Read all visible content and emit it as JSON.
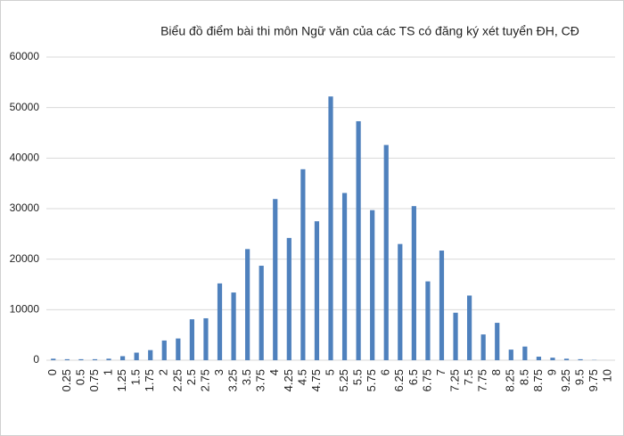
{
  "chart_data": {
    "type": "bar",
    "title": "Biểu đồ điểm bài thi môn Ngữ văn của các TS có đăng ký xét tuyển ĐH, CĐ",
    "categories": [
      "0",
      "0.25",
      "0.5",
      "0.75",
      "1",
      "1.25",
      "1.5",
      "1.75",
      "2",
      "2.25",
      "2.5",
      "2.75",
      "3",
      "3.25",
      "3.5",
      "3.75",
      "4",
      "4.25",
      "4.5",
      "4.75",
      "5",
      "5.25",
      "5.5",
      "5.75",
      "6",
      "6.25",
      "6.5",
      "6.75",
      "7",
      "7.25",
      "7.5",
      "7.75",
      "8",
      "8.25",
      "8.5",
      "8.75",
      "9",
      "9.25",
      "9.5",
      "9.75",
      "10"
    ],
    "values": [
      300,
      200,
      200,
      200,
      300,
      800,
      1500,
      2000,
      3900,
      4300,
      8100,
      8300,
      15200,
      13400,
      22000,
      18700,
      31900,
      24200,
      37800,
      27500,
      52200,
      33100,
      47300,
      29700,
      42600,
      23000,
      30500,
      15600,
      21700,
      9400,
      12800,
      5100,
      7400,
      2100,
      2700,
      700,
      500,
      300,
      200,
      50,
      0
    ],
    "color": "#4f81bd",
    "ylim": [
      0,
      60000
    ],
    "yticks": [
      0,
      10000,
      20000,
      30000,
      40000,
      50000,
      60000
    ],
    "grid": true
  }
}
